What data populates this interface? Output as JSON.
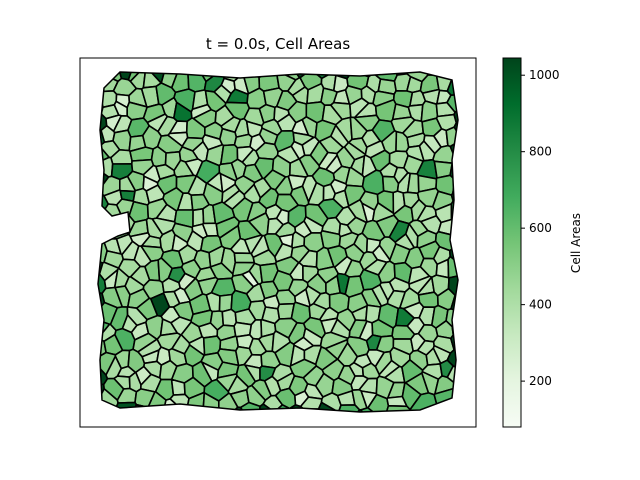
{
  "chart_data": {
    "type": "heatmap",
    "title": "t = 0.0s, Cell Areas",
    "plot": "voronoi cell tessellation colored by area, black cell borders, no axis ticks",
    "colormap": "Greens",
    "colorbar": {
      "label": "Cell Areas",
      "range": [
        80,
        1045
      ],
      "ticks": [
        200,
        400,
        600,
        800,
        1000
      ],
      "tick_labels": [
        "200",
        "400",
        "600",
        "800",
        "1000"
      ]
    },
    "cell_area_stats": {
      "min": 80,
      "max": 1045,
      "typical": [
        150,
        500
      ],
      "largest_cells": [
        1040,
        900,
        880,
        870,
        860,
        850,
        840,
        820,
        800,
        790
      ]
    },
    "colors": {
      "light": "#f7fcf5",
      "mid": "#74c476",
      "dark": "#00441b",
      "border": "#000000"
    }
  }
}
